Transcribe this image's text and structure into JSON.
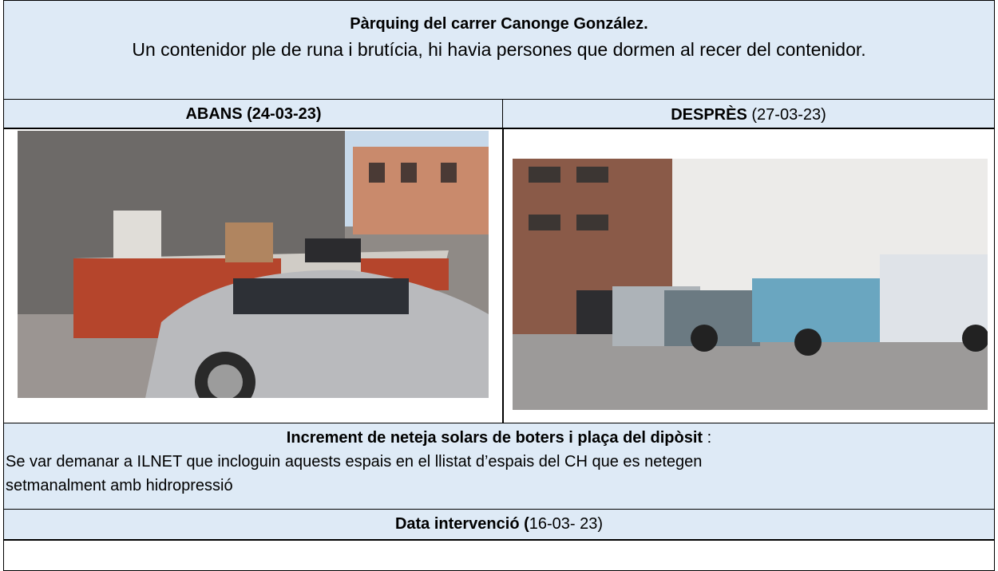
{
  "header": {
    "location": "Pàrquing del carrer Canonge González.",
    "description": "Un contenidor ple de runa i brutícia, hi havia persones que dormen al recer del contenidor."
  },
  "before": {
    "label": "ABANS (24-03-23)"
  },
  "after": {
    "label_bold": "DESPRÈS",
    "label_date": "(27-03-23)"
  },
  "cleaning": {
    "title": "Increment de neteja solars de boters i plaça del dipòsit",
    "title_suffix": ":",
    "text": "Se var demanar a ILNET que incloguin aquests espais en el llistat d’espais del CH que es netegen setmanalment amb hidropressió"
  },
  "intervention": {
    "label": "Data intervenció (",
    "date": "16-03- 23)"
  }
}
